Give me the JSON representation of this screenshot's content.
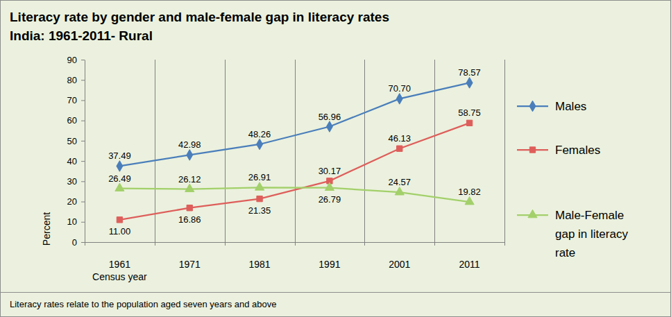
{
  "chart_data": {
    "type": "line",
    "title": "Literacy rate by gender and male-female gap in literacy rates",
    "subtitle": "India: 1961-2011- Rural",
    "x_label": "Census year",
    "y_label": "Percent",
    "note": "Literacy rates relate to the population aged seven years and above",
    "categories": [
      "1961",
      "1971",
      "1981",
      "1991",
      "2001",
      "2011"
    ],
    "ylim": [
      0,
      90
    ],
    "yticks": [
      0,
      10,
      20,
      30,
      40,
      50,
      60,
      70,
      80,
      90
    ],
    "grid": true,
    "legend": "right",
    "data_labels": true,
    "series": [
      {
        "name": "Males",
        "color": "#4A7EBB",
        "marker": "diamond",
        "values": [
          37.49,
          42.98,
          48.26,
          56.96,
          70.7,
          78.57
        ],
        "value_labels": [
          "37.49",
          "42.98",
          "48.26",
          "56.96",
          "70.70",
          "78.57"
        ]
      },
      {
        "name": "Females",
        "color": "#DE5E5B",
        "marker": "square",
        "values": [
          11.0,
          16.86,
          21.35,
          30.17,
          46.13,
          58.75
        ],
        "value_labels": [
          "11.00",
          "16.86",
          "21.35",
          "30.17",
          "46.13",
          "58.75"
        ]
      },
      {
        "name": "Male-Female gap in literacy rate",
        "color": "#A3D06A",
        "marker": "triangle",
        "values": [
          26.49,
          26.12,
          26.91,
          26.79,
          24.57,
          19.82
        ],
        "value_labels": [
          "26.49",
          "26.12",
          "26.91",
          "26.79",
          "24.57",
          "19.82"
        ]
      }
    ]
  }
}
